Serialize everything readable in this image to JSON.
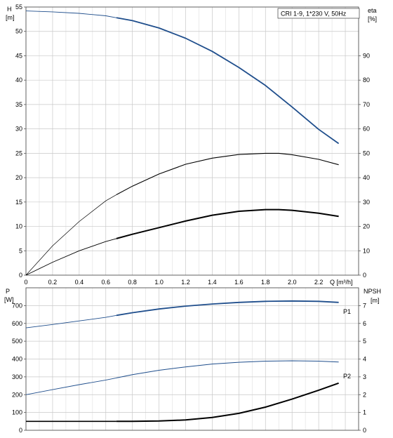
{
  "chart_data": [
    {
      "type": "line",
      "title": "CRI 1-9, 1*230 V, 50Hz",
      "x_label": "Q [m³/h]",
      "x_ticks": [
        0,
        0.2,
        0.4,
        0.6,
        0.8,
        1.0,
        1.2,
        1.4,
        1.6,
        1.8,
        2.0,
        2.2
      ],
      "x_tick_labels": [
        "0",
        "0.2",
        "0.4",
        "0.6",
        "0.8",
        "1.0",
        "1.2",
        "1.4",
        "1.6",
        "1.8",
        "2.0",
        "2.2"
      ],
      "xlim": [
        0,
        2.5
      ],
      "y_left_label_1": "H",
      "y_left_label_2": "[m]",
      "y_left_ticks": [
        0,
        5,
        10,
        15,
        20,
        25,
        30,
        35,
        40,
        45,
        50,
        55
      ],
      "y_left_lim": [
        0,
        55
      ],
      "y_right_label_1": "eta",
      "y_right_label_2": "[%]",
      "y_right_ticks": [
        0,
        10,
        20,
        30,
        40,
        50,
        60,
        70,
        80,
        90
      ],
      "y_right_lim": [
        0,
        110
      ],
      "grid": true,
      "series": [
        {
          "color": "#1f4e8c",
          "axis": "left",
          "x": [
            0,
            0.2,
            0.4,
            0.6,
            0.68,
            0.8,
            1.0,
            1.2,
            1.4,
            1.6,
            1.8,
            2.0,
            2.2,
            2.35
          ],
          "y": [
            54.2,
            54.0,
            53.7,
            53.2,
            52.8,
            52.2,
            50.7,
            48.6,
            45.9,
            42.6,
            38.9,
            34.5,
            29.9,
            27.0
          ]
        },
        {
          "color": "#000000",
          "axis": "right",
          "x": [
            0,
            0.2,
            0.4,
            0.6,
            0.68,
            0.8,
            1.0,
            1.2,
            1.4,
            1.6,
            1.8,
            1.9,
            2.0,
            2.2,
            2.35
          ],
          "y": [
            0,
            12,
            22,
            30.5,
            33,
            36.5,
            41.5,
            45.5,
            48,
            49.5,
            50,
            50,
            49.4,
            47.5,
            45.3
          ]
        },
        {
          "color": "#000000",
          "axis": "right",
          "x": [
            0,
            0.2,
            0.4,
            0.6,
            0.68,
            0.8,
            1.0,
            1.2,
            1.4,
            1.6,
            1.8,
            1.9,
            2.0,
            2.2,
            2.35
          ],
          "y": [
            0,
            5.3,
            10,
            13.8,
            15,
            16.8,
            19.5,
            22.2,
            24.6,
            26.2,
            26.9,
            26.9,
            26.6,
            25.4,
            24.1
          ]
        }
      ]
    },
    {
      "type": "line",
      "y_left_label_1": "P",
      "y_left_label_2": "[W]",
      "y_left_ticks": [
        0,
        100,
        200,
        300,
        400,
        500,
        600,
        700
      ],
      "y_left_lim": [
        0,
        800
      ],
      "y_right_label_1": "NPSH",
      "y_right_label_2": "[m]",
      "y_right_ticks": [
        0,
        1,
        2,
        3,
        4,
        5,
        6,
        7
      ],
      "y_right_lim": [
        0,
        8
      ],
      "xlim": [
        0,
        2.5
      ],
      "grid": true,
      "series": [
        {
          "name": "P1",
          "color": "#1f4e8c",
          "axis": "left",
          "x": [
            0,
            0.2,
            0.4,
            0.6,
            0.68,
            0.8,
            1.0,
            1.2,
            1.4,
            1.6,
            1.8,
            2.0,
            2.2,
            2.35
          ],
          "y": [
            575,
            594,
            614,
            634,
            645,
            660,
            681,
            697,
            709,
            718,
            724,
            726,
            724,
            718
          ]
        },
        {
          "name": "P2",
          "color": "#1f4e8c",
          "axis": "left",
          "x": [
            0,
            0.2,
            0.4,
            0.6,
            0.68,
            0.8,
            1.0,
            1.2,
            1.4,
            1.6,
            1.8,
            2.0,
            2.2,
            2.35
          ],
          "y": [
            200,
            228,
            256,
            282,
            294,
            312,
            337,
            356,
            372,
            382,
            388,
            390,
            388,
            383
          ]
        },
        {
          "color": "#000000",
          "axis": "right",
          "x": [
            0,
            0.6,
            0.68,
            0.8,
            1.0,
            1.2,
            1.4,
            1.6,
            1.8,
            2.0,
            2.2,
            2.35
          ],
          "y": [
            0.5,
            0.5,
            0.5,
            0.5,
            0.52,
            0.58,
            0.72,
            0.95,
            1.3,
            1.75,
            2.25,
            2.65
          ]
        }
      ]
    }
  ]
}
